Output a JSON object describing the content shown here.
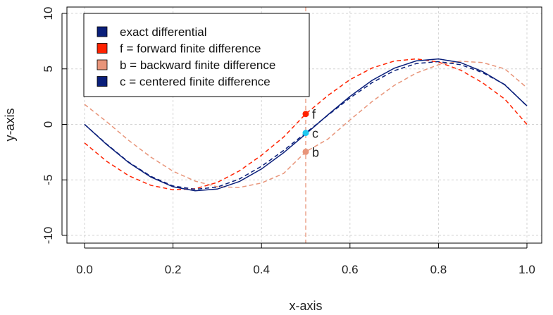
{
  "chart_data": {
    "type": "line",
    "title": "",
    "xlabel": "x-axis",
    "ylabel": "y-axis",
    "xlim": [
      0,
      1
    ],
    "ylim": [
      -10,
      10
    ],
    "xticks": [
      "0.0",
      "0.2",
      "0.4",
      "0.6",
      "0.8",
      "1.0"
    ],
    "yticks": [
      "-10",
      "-5",
      "0",
      "5",
      "10"
    ],
    "grid": true,
    "legend_position": "top-left",
    "legend": [
      {
        "label": "exact differential",
        "color": "#0a1f7a"
      },
      {
        "label": "f = forward finite difference",
        "color": "#ff2200"
      },
      {
        "label": "b = backward finite difference",
        "color": "#e8957a"
      },
      {
        "label": "c = centered finite difference",
        "color": "#0a1f7a"
      }
    ],
    "x": [
      0,
      0.05,
      0.1,
      0.15,
      0.2,
      0.25,
      0.3,
      0.35,
      0.4,
      0.45,
      0.5,
      0.55,
      0.6,
      0.65,
      0.7,
      0.75,
      0.8,
      0.85,
      0.9,
      0.95,
      1.0
    ],
    "series": [
      {
        "values": [
          0.0,
          -1.81,
          -3.45,
          -4.75,
          -5.62,
          -5.99,
          -5.83,
          -5.15,
          -4.02,
          -2.55,
          -0.87,
          0.86,
          2.52,
          3.97,
          5.06,
          5.72,
          5.9,
          5.57,
          4.76,
          3.56,
          1.67
        ],
        "color": "#0a1f7a",
        "dash": "solid"
      },
      {
        "values": [
          -1.67,
          -3.33,
          -4.63,
          -5.49,
          -5.89,
          -5.8,
          -5.23,
          -4.19,
          -2.78,
          -1.14,
          0.94,
          2.6,
          4.03,
          5.08,
          5.7,
          5.9,
          5.62,
          4.89,
          3.74,
          2.28,
          0.0
        ],
        "color": "#ff2200",
        "dash": "dashed"
      },
      {
        "values": [
          1.8,
          0.24,
          -1.45,
          -2.95,
          -4.22,
          -5.11,
          -5.62,
          -5.68,
          -5.28,
          -4.42,
          -2.47,
          -1.33,
          0.4,
          2.06,
          3.51,
          4.63,
          5.37,
          5.69,
          5.57,
          5.0,
          3.3
        ],
        "color": "#e8957a",
        "dash": "dashed"
      },
      {
        "values": [
          0.0,
          -1.78,
          -3.4,
          -4.68,
          -5.55,
          -5.85,
          -5.65,
          -4.92,
          -3.78,
          -2.35,
          -0.77,
          0.82,
          2.38,
          3.76,
          4.84,
          5.48,
          5.66,
          5.38,
          4.66,
          3.59,
          1.65
        ],
        "color": "#0a1f7a",
        "dash": "dashed"
      }
    ],
    "vline": {
      "x": 0.5,
      "color": "#e8957a"
    },
    "points": [
      {
        "label": "f",
        "x": 0.5,
        "y": 0.94,
        "color": "#ff2200"
      },
      {
        "label": "c",
        "x": 0.5,
        "y": -0.77,
        "color": "#1ec8f0"
      },
      {
        "label": "b",
        "x": 0.5,
        "y": -2.47,
        "color": "#e8957a"
      }
    ]
  }
}
